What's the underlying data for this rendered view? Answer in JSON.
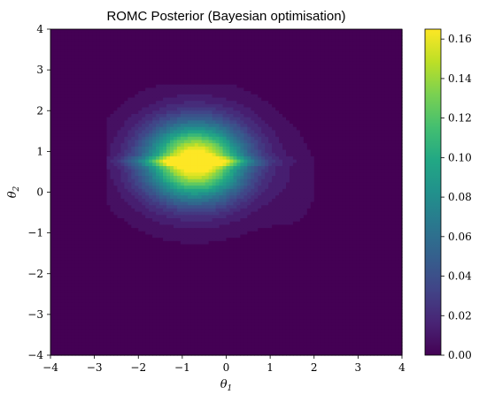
{
  "chart_data": {
    "type": "heatmap",
    "subtype": "filled-contour",
    "title": "ROMC Posterior (Bayesian optimisation)",
    "xlabel": "θ1",
    "ylabel": "θ2",
    "xlabel_main": "θ",
    "xlabel_sub": "1",
    "ylabel_main": "θ",
    "ylabel_sub": "2",
    "xlim": [
      -4,
      4
    ],
    "ylim": [
      -4,
      4
    ],
    "xticks": [
      "−4",
      "−3",
      "−2",
      "−1",
      "0",
      "1",
      "2",
      "3",
      "4"
    ],
    "yticks": [
      "−4",
      "−3",
      "−2",
      "−1",
      "0",
      "1",
      "2",
      "3",
      "4"
    ],
    "colorbar": {
      "min": 0.0,
      "max": 0.165,
      "ticks": [
        "0.00",
        "0.02",
        "0.04",
        "0.06",
        "0.08",
        "0.10",
        "0.12",
        "0.14",
        "0.16"
      ]
    },
    "colormap": "viridis",
    "support_region": {
      "x_range": [
        -2.7,
        2.3
      ],
      "y_range": [
        -2.1,
        2.6
      ]
    },
    "density_peak": {
      "x": -0.7,
      "y": 0.75,
      "value": 0.165
    },
    "grid": false
  }
}
